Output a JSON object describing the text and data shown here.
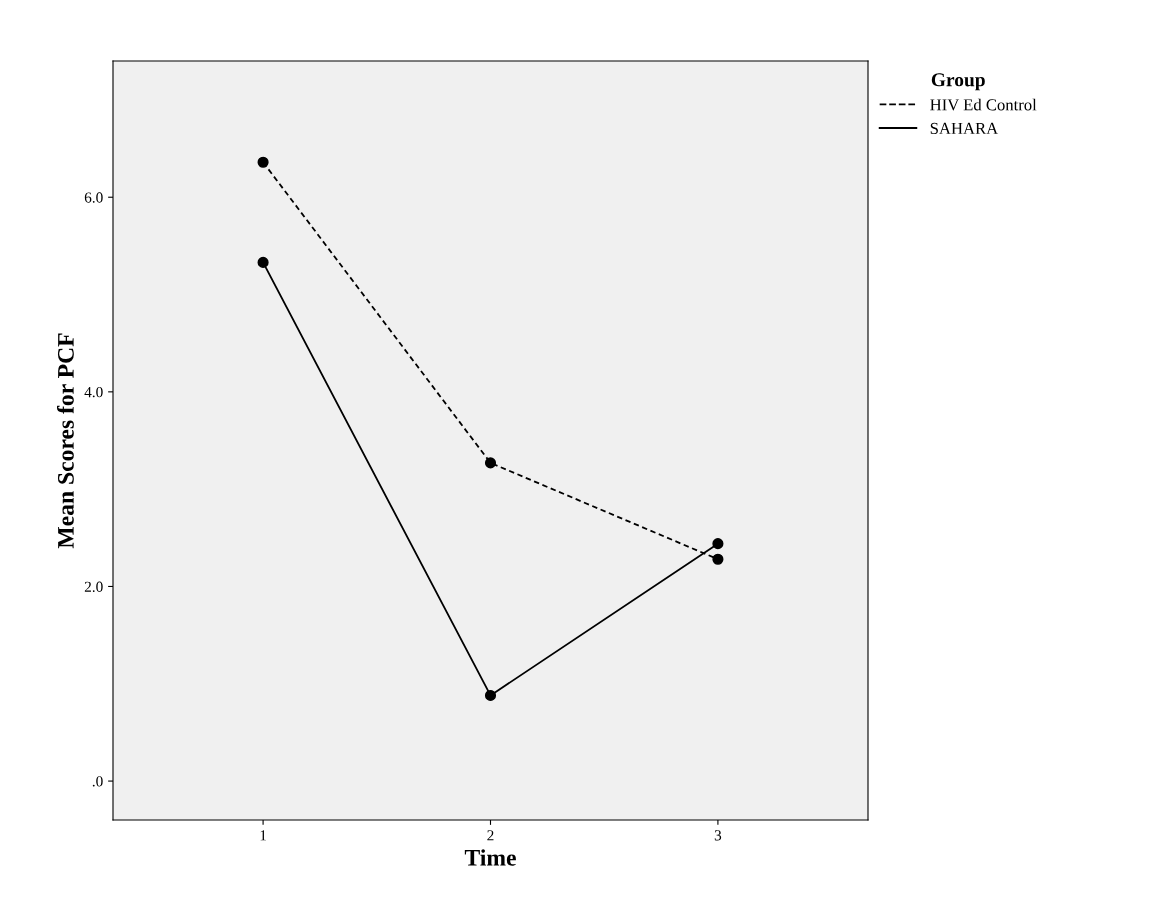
{
  "chart_data": {
    "type": "line",
    "xlabel": "Time",
    "ylabel": "Mean Scores for PCF",
    "legend_title": "Group",
    "x": [
      1,
      2,
      3
    ],
    "series": [
      {
        "name": "HIV Ed Control",
        "color": "#000000",
        "values": [
          6.36,
          3.27,
          2.28
        ],
        "line_style": "dashed"
      },
      {
        "name": "SAHARA",
        "color": "#000000",
        "values": [
          5.33,
          0.88,
          2.44
        ],
        "line_style": "solid"
      }
    ],
    "xlim": [
      0.34,
      3.66
    ],
    "xticks": [
      1,
      2,
      3
    ],
    "ylim": [
      -0.4,
      7.4
    ],
    "yticks": [
      {
        "value": 0,
        "label": ".0"
      },
      {
        "value": 2,
        "label": "2.0"
      },
      {
        "value": 4,
        "label": "4.0"
      },
      {
        "value": 6,
        "label": "6.0"
      }
    ],
    "grid": false,
    "legend": "top right",
    "marker": "circle"
  }
}
